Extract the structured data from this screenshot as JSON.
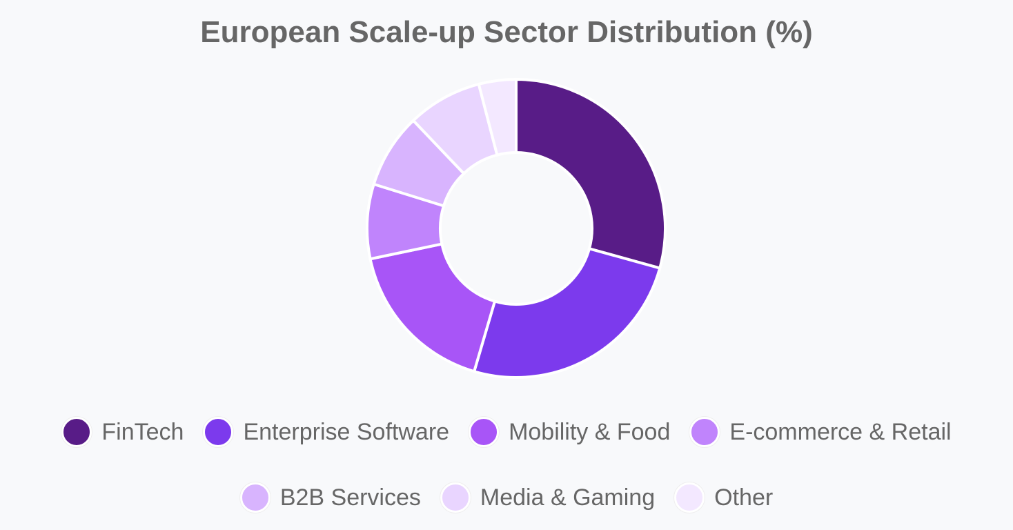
{
  "chart_data": {
    "type": "doughnut",
    "title": "European Scale-up Sector Distribution (%)",
    "categories": [
      "FinTech",
      "Enterprise Software",
      "Mobility & Food",
      "E-commerce & Retail",
      "B2B Services",
      "Media & Gaming",
      "Other"
    ],
    "values": [
      29,
      25,
      17,
      8,
      8,
      8,
      4
    ],
    "colors": [
      "#581c87",
      "#7c3aed",
      "#a855f7",
      "#c084fc",
      "#d8b4fe",
      "#e9d5ff",
      "#f3e8ff"
    ],
    "legend": "bottom"
  }
}
